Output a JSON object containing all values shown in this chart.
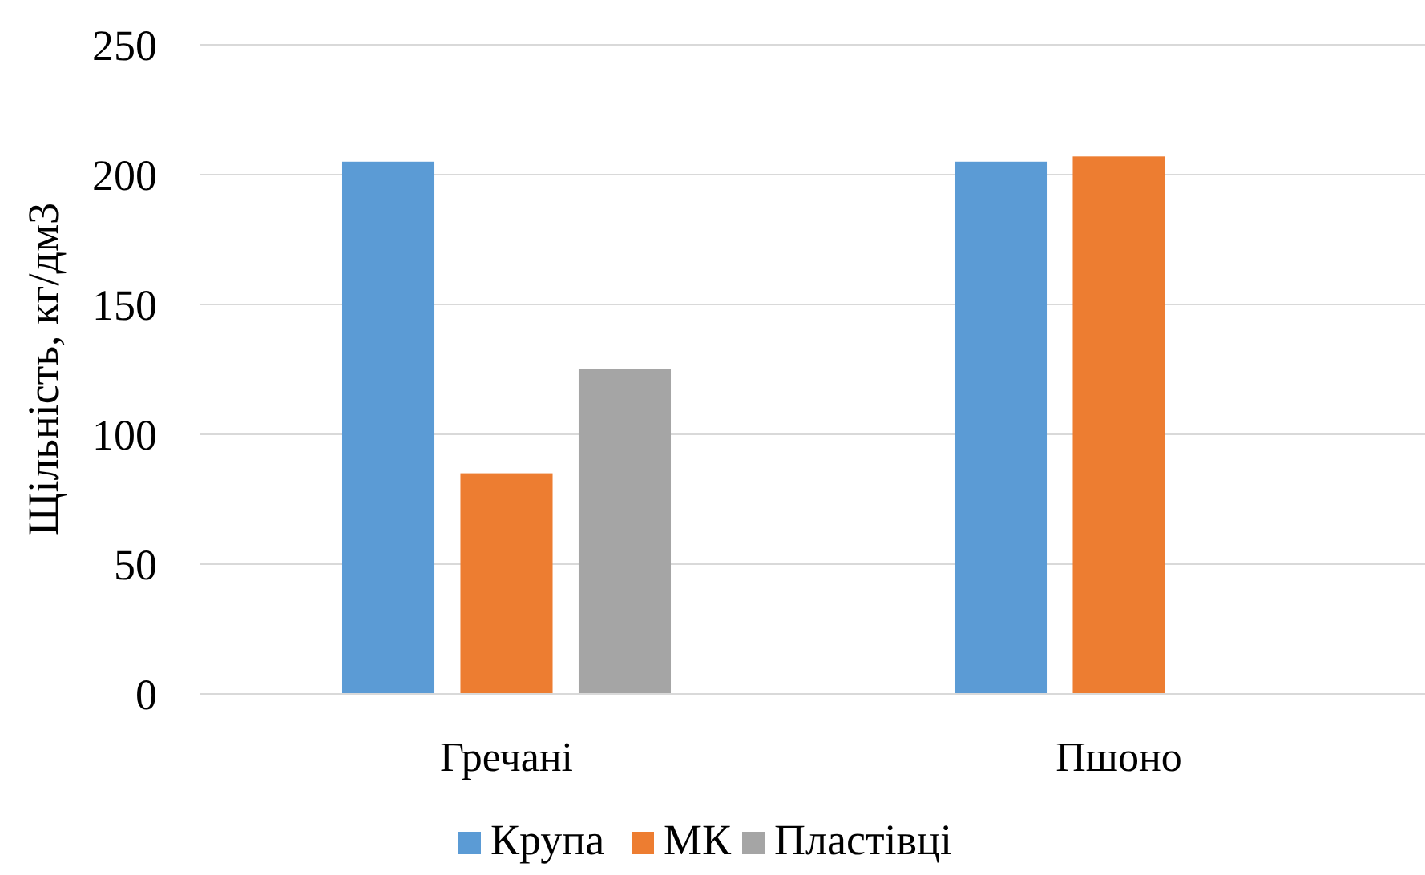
{
  "chart_data": {
    "type": "bar",
    "ylabel": "Щільність, кг/дм3",
    "categories": [
      "Гречані",
      "Пшоно"
    ],
    "series": [
      {
        "name": "Крупа",
        "color": "#5b9bd5",
        "values": [
          205,
          205
        ]
      },
      {
        "name": "МК",
        "color": "#ed7d31",
        "values": [
          85,
          207
        ]
      },
      {
        "name": "Пластівці",
        "color": "#a5a5a5",
        "values": [
          125,
          null
        ]
      }
    ],
    "ylim": [
      0,
      250
    ],
    "yticks": [
      0,
      50,
      100,
      150,
      200,
      250
    ],
    "grid": "y",
    "legend": "bottom"
  }
}
